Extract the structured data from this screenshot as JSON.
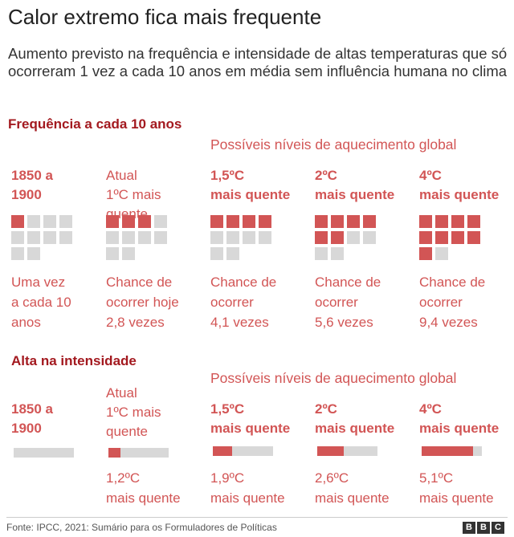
{
  "title": "Calor extremo fica mais frequente",
  "subtitle": "Aumento previsto na frequência e intensidade de altas temperaturas que só ocorreram 1 vez a cada 10 anos em média sem influência humana no clima",
  "source": "Fonte: IPCC, 2021: Sumário para os Formuladores de Políticas",
  "logo": [
    "B",
    "B",
    "C"
  ],
  "colors": {
    "accent": "#d25555",
    "section_heading": "#a3191f",
    "empty": "#d8d8d8"
  },
  "chart_data": [
    {
      "type": "waffle",
      "section_title": "Frequência a cada 10 anos",
      "group_label": "Possíveis níveis de aquecimento global",
      "grid": {
        "columns": 4,
        "total": 10
      },
      "columns": [
        {
          "label_1": "1850 a",
          "label_2": "1900",
          "label_style": "strong",
          "value": 1,
          "desc": [
            "Uma vez",
            "a cada 10",
            "anos"
          ]
        },
        {
          "label_1": "Atual",
          "label_2": "1ºC mais",
          "label_3": "quente",
          "label_style": "light",
          "value": 2.8,
          "desc": [
            "Chance de",
            "ocorrer hoje",
            "2,8 vezes"
          ]
        },
        {
          "label_1": "1,5ºC",
          "label_2": "mais quente",
          "label_style": "strong",
          "value": 4.1,
          "desc": [
            "Chance de",
            "ocorrer",
            "4,1 vezes"
          ]
        },
        {
          "label_1": "2ºC",
          "label_2": "mais quente",
          "label_style": "strong",
          "value": 5.6,
          "desc": [
            "Chance de",
            "ocorrer",
            "5,6 vezes"
          ]
        },
        {
          "label_1": "4ºC",
          "label_2": "mais quente",
          "label_style": "strong",
          "value": 9.4,
          "desc": [
            "Chance de",
            "ocorrer",
            "9,4 vezes"
          ]
        }
      ]
    },
    {
      "type": "bar",
      "section_title": "Alta na intensidade",
      "group_label": "Possíveis níveis de aquecimento global",
      "max_value": 6,
      "columns": [
        {
          "label_1": "1850 a",
          "label_2": "1900",
          "label_style": "strong",
          "value": 0,
          "desc": []
        },
        {
          "label_1": "Atual",
          "label_2": "1ºC mais",
          "label_3": "quente",
          "label_style": "light",
          "value": 1.2,
          "desc": [
            "1,2ºC",
            "mais quente"
          ]
        },
        {
          "label_1": "1,5ºC",
          "label_2": "mais quente",
          "label_style": "strong",
          "value": 1.9,
          "desc": [
            "1,9ºC",
            "mais quente"
          ]
        },
        {
          "label_1": "2ºC",
          "label_2": "mais quente",
          "label_style": "strong",
          "value": 2.6,
          "desc": [
            "2,6ºC",
            "mais quente"
          ]
        },
        {
          "label_1": "4ºC",
          "label_2": "mais quente",
          "label_style": "strong",
          "value": 5.1,
          "desc": [
            "5,1ºC",
            "mais quente"
          ]
        }
      ]
    }
  ]
}
